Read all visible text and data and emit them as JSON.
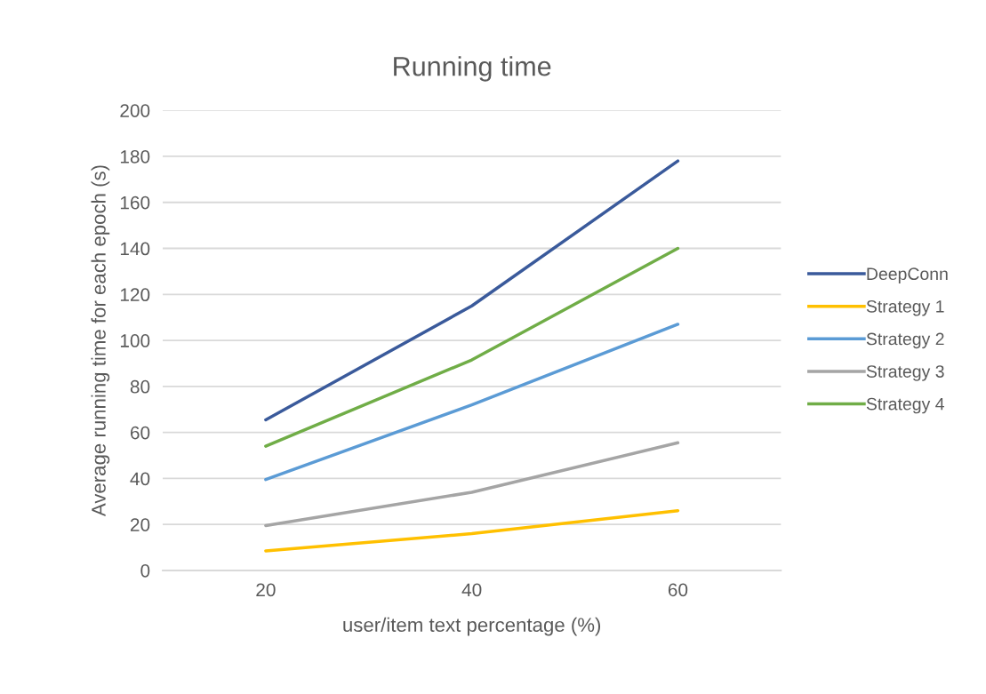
{
  "chart_data": {
    "type": "line",
    "title": "Running time",
    "xlabel": "user/item text percentage (%)",
    "ylabel": "Average running time for each epoch (s)",
    "categories": [
      "20",
      "40",
      "60"
    ],
    "series": [
      {
        "name": "DeepConn",
        "color": "#3a5a9b",
        "values": [
          65.5,
          115,
          178
        ]
      },
      {
        "name": "Strategy 1",
        "color": "#ffc000",
        "values": [
          8.5,
          16,
          26
        ]
      },
      {
        "name": "Strategy 2",
        "color": "#5b9bd5",
        "values": [
          39.5,
          72,
          107
        ]
      },
      {
        "name": "Strategy 3",
        "color": "#a5a5a5",
        "values": [
          19.5,
          34,
          55.5
        ]
      },
      {
        "name": "Strategy 4",
        "color": "#70ad47",
        "values": [
          54,
          91.5,
          140
        ]
      }
    ],
    "ylim": [
      0,
      200
    ],
    "yticks": [
      0,
      20,
      40,
      60,
      80,
      100,
      120,
      140,
      160,
      180,
      200
    ],
    "grid": "y",
    "legend": "right",
    "line_style": "solid"
  }
}
